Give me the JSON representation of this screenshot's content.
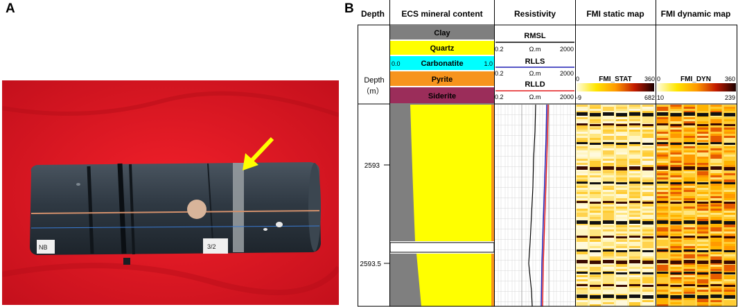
{
  "panel_a": {
    "letter": "A",
    "core_labels": [
      "NB",
      "3/2"
    ]
  },
  "panel_b": {
    "letter": "B",
    "headers": {
      "depth": "Depth",
      "ecs": "ECS mineral content",
      "resistivity": "Resistivity",
      "fmi_static": "FMI static map",
      "fmi_dynamic": "FMI dynamic map"
    },
    "depth_track": {
      "title": "Depth",
      "unit": "（m）",
      "ticks": [
        "2593",
        "2593.5"
      ]
    },
    "ecs_legend": [
      {
        "name": "Clay",
        "color": "#7f7f7f"
      },
      {
        "name": "Quartz",
        "color": "#ffff00"
      },
      {
        "name": "Carbonatite",
        "color": "#00ffff",
        "scale_min": "0.0",
        "scale_max": "1.0"
      },
      {
        "name": "Pyrite",
        "color": "#f7941d"
      },
      {
        "name": "Siderite",
        "color": "#9b2d5a"
      }
    ],
    "resistivity_curves": [
      {
        "name": "RMSL",
        "unit": "Ω.m",
        "min": "0.2",
        "max": "2000",
        "color": "#000000"
      },
      {
        "name": "RLLS",
        "unit": "Ω.m",
        "min": "0.2",
        "max": "2000",
        "color": "#1f1fb4"
      },
      {
        "name": "RLLD",
        "unit": "Ω.m",
        "min": "0.2",
        "max": "2000",
        "color": "#e31a1c"
      }
    ],
    "fmi_static_scale": {
      "name": "FMI_STAT",
      "top_min": "0",
      "top_max": "360",
      "bottom_min": "-9",
      "bottom_max": "682"
    },
    "fmi_dynamic_scale": {
      "name": "FMI_DYN",
      "top_min": "0",
      "top_max": "360",
      "bottom_min": "10",
      "bottom_max": "239"
    }
  }
}
